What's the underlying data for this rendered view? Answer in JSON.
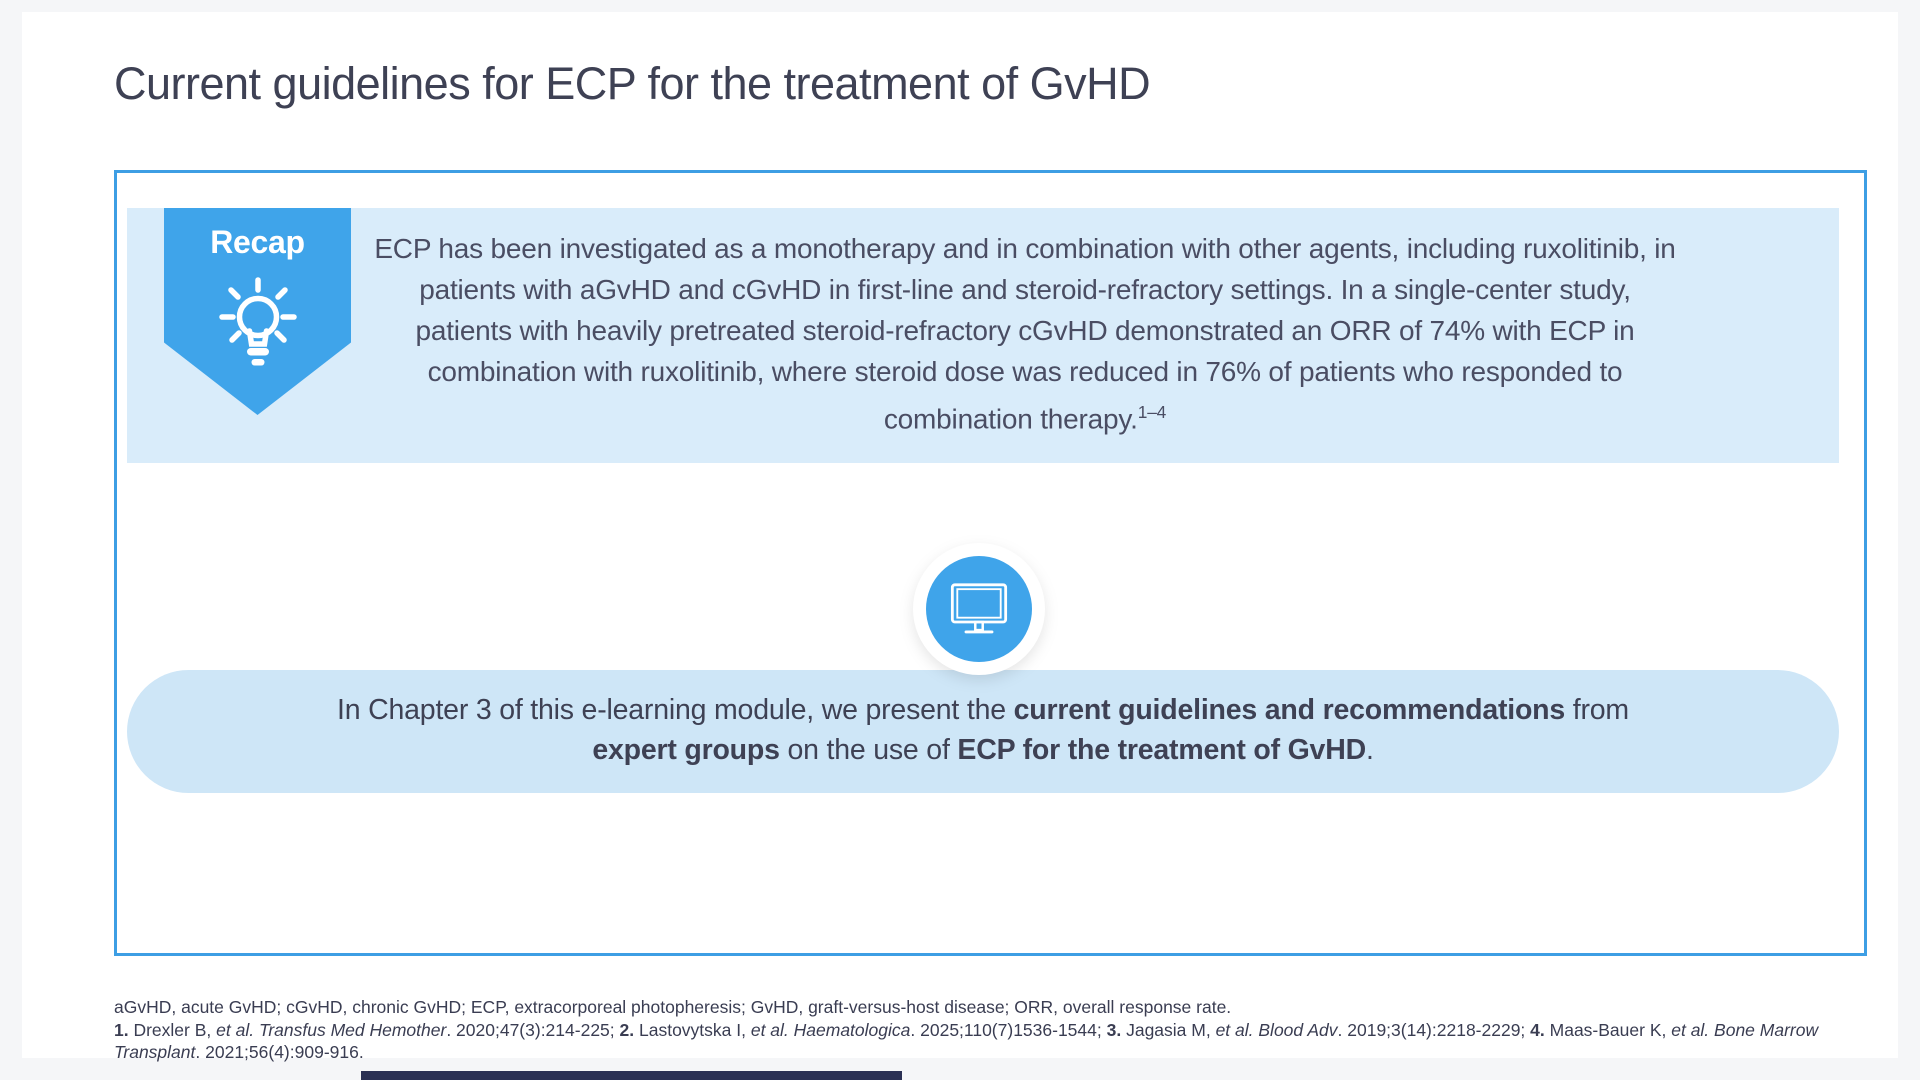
{
  "page": {
    "title": "Current guidelines for ECP for the treatment of GvHD"
  },
  "recap": {
    "badge_label": "Recap",
    "icon": "lightbulb-icon",
    "paragraph_segments": [
      {
        "t": "ECP has been investigated as a monotherapy and in combination with other agents, including ruxolitinib, in patients with aGvHD and cGvHD in first-line and steroid-refractory settings. In a single-center study, patients with heavily pretreated steroid-refractory cGvHD demonstrated an ORR of 74% with ECP in combination with ruxolitinib, where steroid dose was reduced in 76% of patients who responded to combination therapy."
      },
      {
        "t": "1–4",
        "sup": true
      }
    ]
  },
  "callout": {
    "icon": "monitor-icon",
    "segments": [
      {
        "t": "In Chapter 3 of this e-learning module, we present the "
      },
      {
        "t": "current guidelines and recommendations",
        "b": true
      },
      {
        "t": " from "
      },
      {
        "t": "expert groups",
        "b": true
      },
      {
        "t": " on the use of "
      },
      {
        "t": "ECP for the treatment of GvHD",
        "b": true
      },
      {
        "t": "."
      }
    ]
  },
  "footnotes": {
    "abbreviations": "aGvHD, acute GvHD; cGvHD, chronic GvHD; ECP, extracorporeal photopheresis; GvHD, graft-versus-host disease; ORR, overall response rate.",
    "reference_segments": [
      {
        "t": "1.",
        "b": true
      },
      {
        "t": " Drexler B, "
      },
      {
        "t": "et al. Transfus Med Hemother",
        "i": true
      },
      {
        "t": ". 2020;47(3):214-225; "
      },
      {
        "t": "2.",
        "b": true
      },
      {
        "t": " Lastovytska I, "
      },
      {
        "t": "et al. Haematologica",
        "i": true
      },
      {
        "t": ". 2025;110(7)1536-1544; "
      },
      {
        "t": "3.",
        "b": true
      },
      {
        "t": " Jagasia M, "
      },
      {
        "t": "et al. Blood Adv",
        "i": true
      },
      {
        "t": ". 2019;3(14):2218-2229; "
      },
      {
        "t": "4.",
        "b": true
      },
      {
        "t": " Maas-Bauer K, "
      },
      {
        "t": "et al. Bone Marrow Transplant",
        "i": true
      },
      {
        "t": ". 2021;56(4):909-916."
      }
    ]
  },
  "colors": {
    "accent": "#3fa4ea",
    "panel_border": "#3d9ee4",
    "recap_bg": "#d9ecfa",
    "callout_bg": "#cee6f7",
    "title_text": "#3e4154",
    "body_text": "#4a4d63",
    "footnote_text": "#3a3d52",
    "progress_bar": "#2a3054",
    "page_bg": "#f5f6f8"
  }
}
